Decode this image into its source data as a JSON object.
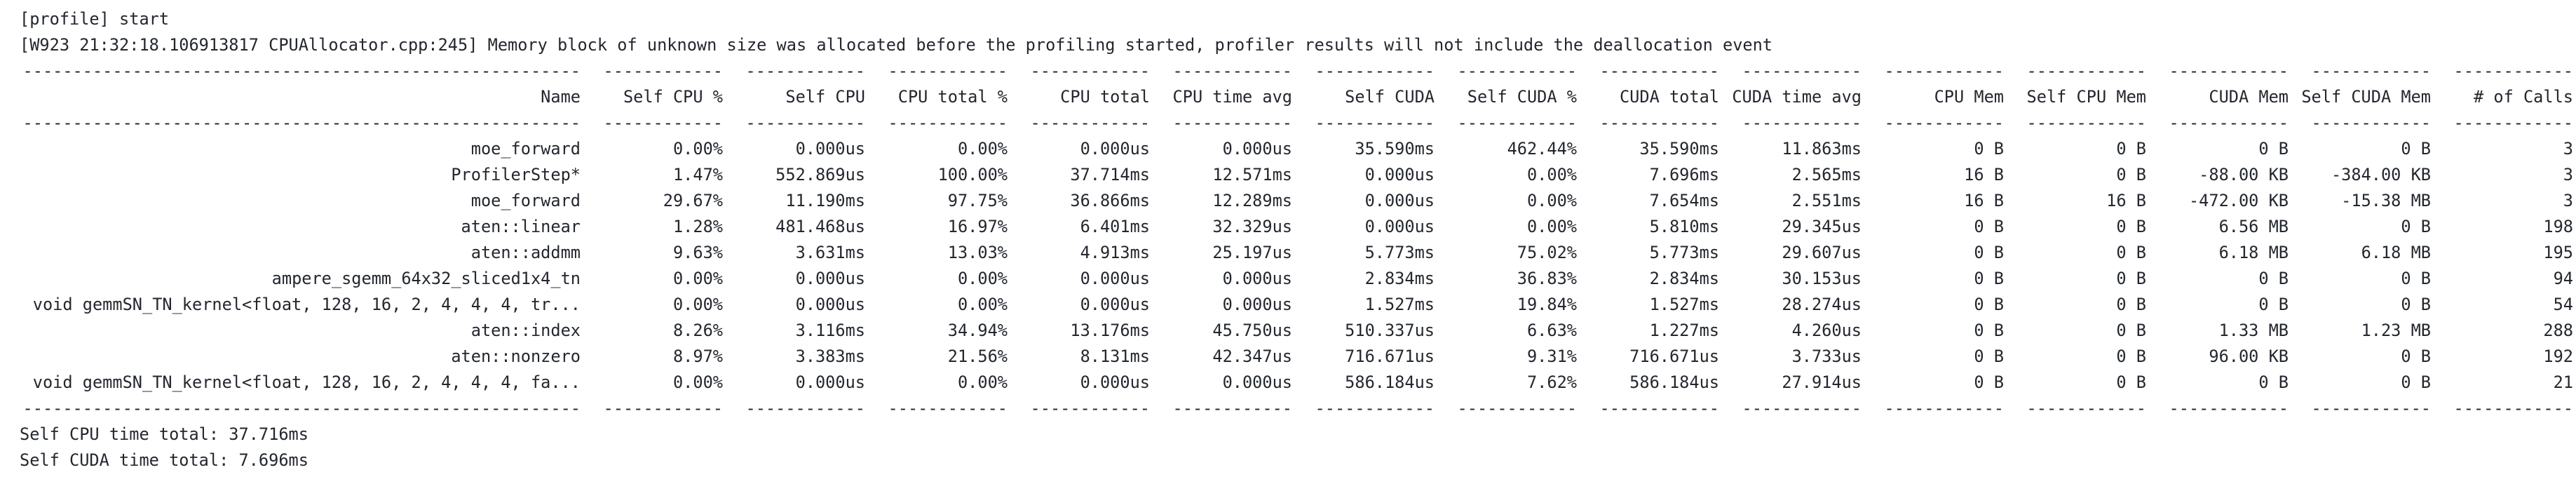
{
  "log": {
    "start_line": "[profile] start",
    "warning_line": "[W923 21:32:18.106913817 CPUAllocator.cpp:245] Memory block of unknown size was allocated before the profiling started, profiler results will not include the deallocation event"
  },
  "table": {
    "columns": [
      "Name",
      "Self CPU %",
      "Self CPU",
      "CPU total %",
      "CPU total",
      "CPU time avg",
      "Self CUDA",
      "Self CUDA %",
      "CUDA total",
      "CUDA time avg",
      "CPU Mem",
      "Self CPU Mem",
      "CUDA Mem",
      "Self CUDA Mem",
      "# of Calls"
    ],
    "rows": [
      [
        "moe_forward",
        "0.00%",
        "0.000us",
        "0.00%",
        "0.000us",
        "0.000us",
        "35.590ms",
        "462.44%",
        "35.590ms",
        "11.863ms",
        "0 B",
        "0 B",
        "0 B",
        "0 B",
        "3"
      ],
      [
        "ProfilerStep*",
        "1.47%",
        "552.869us",
        "100.00%",
        "37.714ms",
        "12.571ms",
        "0.000us",
        "0.00%",
        "7.696ms",
        "2.565ms",
        "16 B",
        "0 B",
        "-88.00 KB",
        "-384.00 KB",
        "3"
      ],
      [
        "moe_forward",
        "29.67%",
        "11.190ms",
        "97.75%",
        "36.866ms",
        "12.289ms",
        "0.000us",
        "0.00%",
        "7.654ms",
        "2.551ms",
        "16 B",
        "16 B",
        "-472.00 KB",
        "-15.38 MB",
        "3"
      ],
      [
        "aten::linear",
        "1.28%",
        "481.468us",
        "16.97%",
        "6.401ms",
        "32.329us",
        "0.000us",
        "0.00%",
        "5.810ms",
        "29.345us",
        "0 B",
        "0 B",
        "6.56 MB",
        "0 B",
        "198"
      ],
      [
        "aten::addmm",
        "9.63%",
        "3.631ms",
        "13.03%",
        "4.913ms",
        "25.197us",
        "5.773ms",
        "75.02%",
        "5.773ms",
        "29.607us",
        "0 B",
        "0 B",
        "6.18 MB",
        "6.18 MB",
        "195"
      ],
      [
        "ampere_sgemm_64x32_sliced1x4_tn",
        "0.00%",
        "0.000us",
        "0.00%",
        "0.000us",
        "0.000us",
        "2.834ms",
        "36.83%",
        "2.834ms",
        "30.153us",
        "0 B",
        "0 B",
        "0 B",
        "0 B",
        "94"
      ],
      [
        "void gemmSN_TN_kernel<float, 128, 16, 2, 4, 4, 4, tr...",
        "0.00%",
        "0.000us",
        "0.00%",
        "0.000us",
        "0.000us",
        "1.527ms",
        "19.84%",
        "1.527ms",
        "28.274us",
        "0 B",
        "0 B",
        "0 B",
        "0 B",
        "54"
      ],
      [
        "aten::index",
        "8.26%",
        "3.116ms",
        "34.94%",
        "13.176ms",
        "45.750us",
        "510.337us",
        "6.63%",
        "1.227ms",
        "4.260us",
        "0 B",
        "0 B",
        "1.33 MB",
        "1.23 MB",
        "288"
      ],
      [
        "aten::nonzero",
        "8.97%",
        "3.383ms",
        "21.56%",
        "8.131ms",
        "42.347us",
        "716.671us",
        "9.31%",
        "716.671us",
        "3.733us",
        "0 B",
        "0 B",
        "96.00 KB",
        "0 B",
        "192"
      ],
      [
        "void gemmSN_TN_kernel<float, 128, 16, 2, 4, 4, 4, fa...",
        "0.00%",
        "0.000us",
        "0.00%",
        "0.000us",
        "0.000us",
        "586.184us",
        "7.62%",
        "586.184us",
        "27.914us",
        "0 B",
        "0 B",
        "0 B",
        "0 B",
        "21"
      ]
    ]
  },
  "footer": {
    "self_cpu_total": "Self CPU time total: 37.716ms",
    "self_cuda_total": "Self CUDA time total: 7.696ms"
  },
  "colors": {
    "background": "#ffffff",
    "text": "#23272e"
  }
}
